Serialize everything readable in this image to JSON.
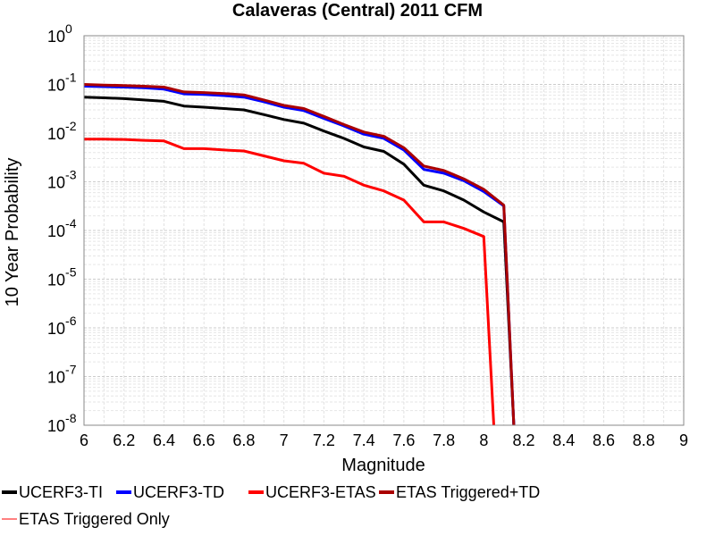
{
  "chart_data": {
    "type": "line",
    "title": "Calaveras (Central) 2011 CFM",
    "xlabel": "Magnitude",
    "ylabel": "10 Year Probability",
    "x_scale": "linear",
    "y_scale": "log",
    "xlim": [
      6,
      9
    ],
    "ylim": [
      1e-08,
      1
    ],
    "x_ticks": [
      "6",
      "6.2",
      "6.4",
      "6.6",
      "6.8",
      "7",
      "7.2",
      "7.4",
      "7.6",
      "7.8",
      "8",
      "8.2",
      "8.4",
      "8.6",
      "8.8",
      "9"
    ],
    "y_ticks": [
      {
        "base": "10",
        "exp": "0"
      },
      {
        "base": "10",
        "exp": "-1"
      },
      {
        "base": "10",
        "exp": "-2"
      },
      {
        "base": "10",
        "exp": "-3"
      },
      {
        "base": "10",
        "exp": "-4"
      },
      {
        "base": "10",
        "exp": "-5"
      },
      {
        "base": "10",
        "exp": "-6"
      },
      {
        "base": "10",
        "exp": "-7"
      },
      {
        "base": "10",
        "exp": "-8"
      }
    ],
    "grid": true,
    "legend_position": "bottom",
    "series": [
      {
        "name": "UCERF3-TI",
        "color": "#000000",
        "x": [
          6.0,
          6.1,
          6.2,
          6.3,
          6.4,
          6.5,
          6.6,
          6.7,
          6.8,
          6.9,
          7.0,
          7.1,
          7.2,
          7.3,
          7.4,
          7.5,
          7.6,
          7.7,
          7.8,
          7.9,
          8.0,
          8.1,
          8.15
        ],
        "y": [
          0.055,
          0.053,
          0.051,
          0.048,
          0.045,
          0.036,
          0.034,
          0.032,
          0.03,
          0.024,
          0.019,
          0.016,
          0.011,
          0.0078,
          0.0052,
          0.0042,
          0.0023,
          0.00085,
          0.00065,
          0.00042,
          0.00024,
          0.00015,
          1e-08
        ]
      },
      {
        "name": "UCERF3-TD",
        "color": "#0000ff",
        "x": [
          6.0,
          6.1,
          6.2,
          6.3,
          6.4,
          6.5,
          6.6,
          6.7,
          6.8,
          6.9,
          7.0,
          7.1,
          7.2,
          7.3,
          7.4,
          7.5,
          7.6,
          7.7,
          7.8,
          7.9,
          8.0,
          8.1,
          8.15
        ],
        "y": [
          0.092,
          0.09,
          0.088,
          0.085,
          0.08,
          0.064,
          0.062,
          0.059,
          0.055,
          0.044,
          0.034,
          0.029,
          0.02,
          0.014,
          0.0095,
          0.0078,
          0.0045,
          0.0018,
          0.0015,
          0.00105,
          0.00063,
          0.00032,
          1e-08
        ]
      },
      {
        "name": "UCERF3-ETAS",
        "color": "#ff0000",
        "x": [
          6.0,
          6.1,
          6.2,
          6.3,
          6.4,
          6.5,
          6.6,
          6.7,
          6.8,
          6.9,
          7.0,
          7.1,
          7.2,
          7.3,
          7.4,
          7.5,
          7.6,
          7.7,
          7.8,
          7.9,
          8.0,
          8.05
        ],
        "y": [
          0.0075,
          0.0075,
          0.0074,
          0.0071,
          0.0069,
          0.0048,
          0.0048,
          0.0045,
          0.0043,
          0.0034,
          0.0027,
          0.0024,
          0.0015,
          0.0013,
          0.00085,
          0.00065,
          0.00042,
          0.00015,
          0.00015,
          0.00011,
          7.5e-05,
          1e-08
        ]
      },
      {
        "name": "ETAS Triggered+TD",
        "color": "#aa0000",
        "x": [
          6.0,
          6.1,
          6.2,
          6.3,
          6.4,
          6.5,
          6.6,
          6.7,
          6.8,
          6.9,
          7.0,
          7.1,
          7.2,
          7.3,
          7.4,
          7.5,
          7.6,
          7.7,
          7.8,
          7.9,
          8.0,
          8.1,
          8.15
        ],
        "y": [
          0.1,
          0.097,
          0.095,
          0.092,
          0.088,
          0.07,
          0.068,
          0.065,
          0.061,
          0.048,
          0.037,
          0.032,
          0.022,
          0.015,
          0.0105,
          0.0086,
          0.005,
          0.0021,
          0.0017,
          0.00115,
          0.0007,
          0.00033,
          1e-08
        ]
      },
      {
        "name": "ETAS Triggered Only",
        "color": "#ff8080",
        "x": [],
        "y": []
      }
    ]
  }
}
